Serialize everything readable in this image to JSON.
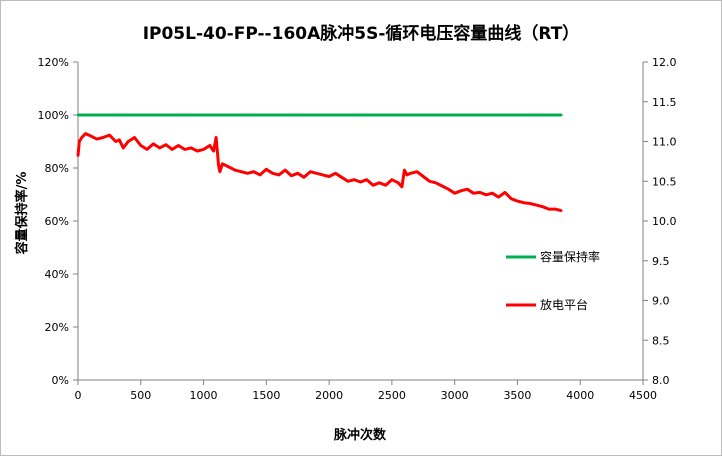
{
  "chart_data": {
    "type": "line",
    "title": "IP05L-40-FP--160A脉冲5S-循环电压容量曲线（RT）",
    "xlabel": "脉冲次数",
    "ylabel": "容量保持率/%",
    "y2label": "",
    "xlim": [
      0,
      4500
    ],
    "ylim": [
      0,
      120
    ],
    "y2lim": [
      8.0,
      12.0
    ],
    "x_ticks": [
      "0",
      "500",
      "1000",
      "1500",
      "2000",
      "2500",
      "3000",
      "3500",
      "4000",
      "4500"
    ],
    "y_ticks": [
      "0%",
      "20%",
      "40%",
      "60%",
      "80%",
      "100%",
      "120%"
    ],
    "y2_ticks": [
      "8.0",
      "8.5",
      "9.0",
      "9.5",
      "10.0",
      "10.5",
      "11.0",
      "11.5",
      "12.0"
    ],
    "grid": false,
    "legend_position": "right",
    "series": [
      {
        "name": "容量保持率",
        "axis": "left",
        "color": "#00b050",
        "x": [
          0,
          100,
          200,
          300,
          400,
          500,
          600,
          700,
          800,
          900,
          1000,
          1100,
          1200,
          1300,
          1400,
          1500,
          1600,
          1700,
          1800,
          1900,
          2000,
          2100,
          2200,
          2300,
          2400,
          2500,
          2600,
          2700,
          2800,
          2900,
          3000,
          3100,
          3200,
          3300,
          3400,
          3500,
          3600,
          3700,
          3800,
          3850
        ],
        "y": [
          100,
          100,
          100,
          100,
          100,
          100,
          100,
          100,
          100,
          100,
          100,
          100,
          100,
          100,
          100,
          100,
          100,
          100,
          100,
          100,
          100,
          100,
          100,
          100,
          100,
          100,
          100,
          100,
          100,
          100,
          100,
          100,
          100,
          100,
          100,
          100,
          100,
          100,
          100,
          100
        ]
      },
      {
        "name": "放电平台",
        "axis": "right",
        "color": "#ff0000",
        "x": [
          0,
          10,
          30,
          60,
          100,
          150,
          200,
          250,
          300,
          330,
          360,
          400,
          450,
          500,
          550,
          600,
          650,
          700,
          750,
          800,
          850,
          900,
          950,
          1000,
          1050,
          1080,
          1100,
          1120,
          1130,
          1150,
          1200,
          1250,
          1300,
          1350,
          1400,
          1450,
          1500,
          1550,
          1600,
          1650,
          1700,
          1750,
          1800,
          1850,
          1900,
          1950,
          2000,
          2050,
          2100,
          2150,
          2200,
          2250,
          2300,
          2350,
          2400,
          2450,
          2500,
          2550,
          2580,
          2600,
          2620,
          2650,
          2700,
          2750,
          2800,
          2850,
          2900,
          2950,
          3000,
          3050,
          3100,
          3150,
          3200,
          3250,
          3300,
          3350,
          3400,
          3450,
          3500,
          3550,
          3600,
          3650,
          3700,
          3750,
          3800,
          3850
        ],
        "y": [
          10.82,
          11.0,
          11.05,
          11.1,
          11.07,
          11.03,
          11.05,
          11.08,
          11.0,
          11.02,
          10.92,
          11.0,
          11.05,
          10.95,
          10.9,
          10.97,
          10.92,
          10.96,
          10.9,
          10.95,
          10.9,
          10.92,
          10.88,
          10.9,
          10.95,
          10.88,
          11.05,
          10.7,
          10.62,
          10.72,
          10.68,
          10.64,
          10.62,
          10.6,
          10.62,
          10.58,
          10.65,
          10.6,
          10.58,
          10.64,
          10.57,
          10.6,
          10.55,
          10.62,
          10.6,
          10.58,
          10.56,
          10.6,
          10.55,
          10.5,
          10.52,
          10.49,
          10.52,
          10.45,
          10.48,
          10.45,
          10.52,
          10.48,
          10.43,
          10.64,
          10.58,
          10.6,
          10.62,
          10.56,
          10.5,
          10.48,
          10.44,
          10.4,
          10.35,
          10.38,
          10.4,
          10.35,
          10.36,
          10.33,
          10.35,
          10.3,
          10.36,
          10.28,
          10.25,
          10.23,
          10.22,
          10.2,
          10.18,
          10.15,
          10.15,
          10.13
        ]
      }
    ]
  }
}
